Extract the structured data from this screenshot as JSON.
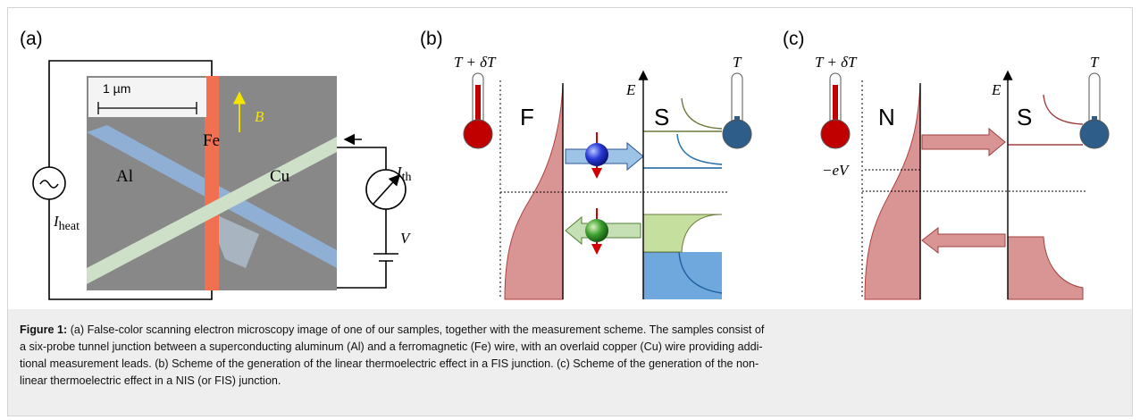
{
  "panels": [
    {
      "label": "(a)",
      "scale_bar": "1 µm",
      "field": "B",
      "fe": "Fe",
      "al": "Al",
      "cu": "Cu",
      "current_th": {
        "symbol": "I",
        "subscript": "th"
      },
      "voltage": "V",
      "current_heat": {
        "symbol": "I",
        "subscript": "heat"
      }
    },
    {
      "label": "(b)",
      "hot": "T + δT",
      "cold": "T",
      "left": "F",
      "axis": "E",
      "right": "S"
    },
    {
      "label": "(c)",
      "hot": "T + δT",
      "cold": "T",
      "left": "N",
      "axis": "E",
      "right": "S",
      "bias": "−eV"
    }
  ],
  "caption": {
    "label": "Figure 1:",
    "lines": [
      "(a) False-color scanning electron microscopy image of one of our samples, together with the measurement scheme. The samples consist of",
      "a six-probe tunnel junction between a superconducting aluminum (Al) and a ferromagnetic (Fe) wire, with an overlaid copper (Cu) wire providing addi-",
      "tional measurement leads. (b) Scheme of the generation of the linear thermoelectric effect in a FIS junction. (c) Scheme of the generation of the non-",
      "linear thermoelectric effect in a NIS (or FIS) junction."
    ]
  }
}
